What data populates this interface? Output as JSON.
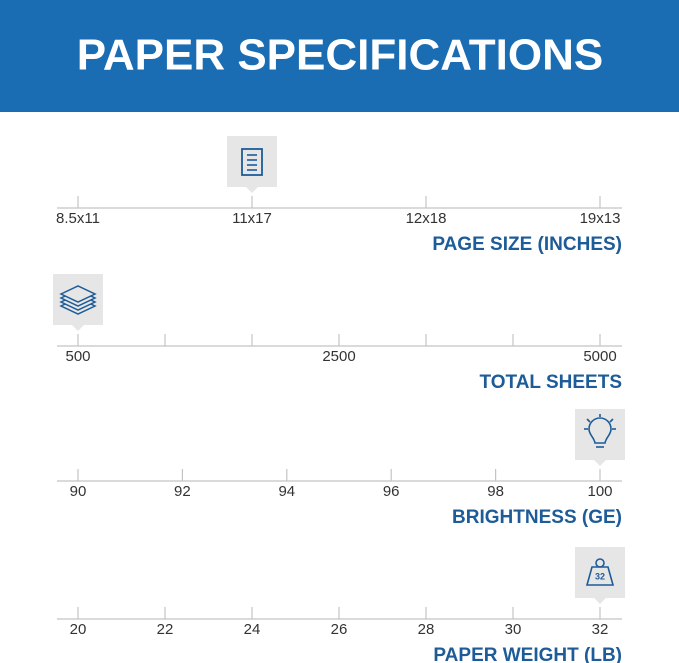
{
  "header": {
    "title": "PAPER SPECIFICATIONS"
  },
  "scales": [
    {
      "label": "PAGE SIZE (INCHES)",
      "ticks": [
        "8.5x11",
        "11x17",
        "12x18",
        "19x13"
      ],
      "selected": "11x17"
    },
    {
      "label": "TOTAL SHEETS",
      "ticks": [
        500,
        null,
        null,
        2500,
        null,
        null,
        5000
      ],
      "selected": 500
    },
    {
      "label": "BRIGHTNESS (GE)",
      "ticks": [
        90,
        92,
        94,
        96,
        98,
        100
      ],
      "selected": 100
    },
    {
      "label": "PAPER WEIGHT (LB)",
      "ticks": [
        20,
        22,
        24,
        26,
        28,
        30,
        32
      ],
      "selected": 32
    }
  ]
}
